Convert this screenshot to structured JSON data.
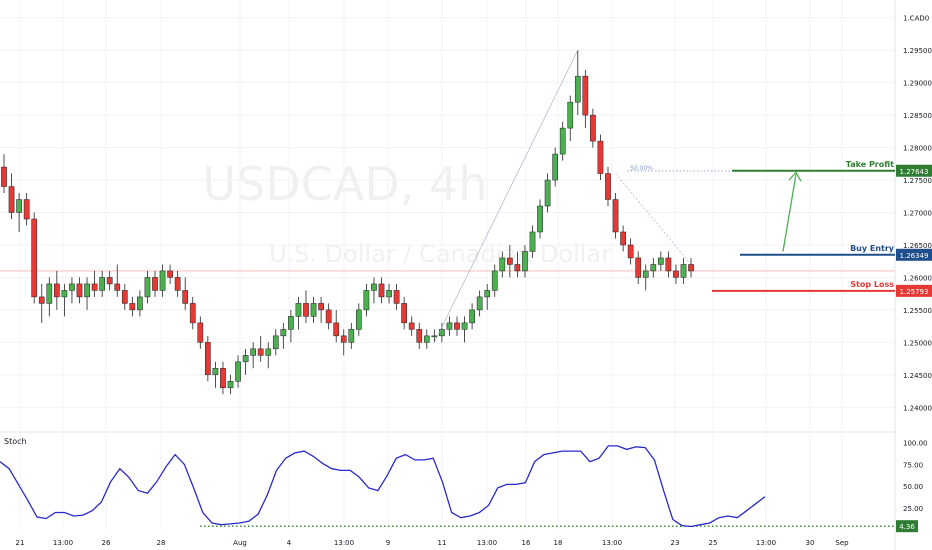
{
  "chart_data": {
    "type": "candlestick",
    "symbol": "USDCAD",
    "interval": "4h",
    "watermark_symbol": "USDCAD, 4h",
    "watermark_name": "U.S. Dollar / Canadian Dollar",
    "currency_label": "CAD",
    "price_axis": {
      "ylim": [
        1.2365,
        1.3015
      ],
      "ticks": [
        1.24,
        1.245,
        1.25,
        1.255,
        1.26,
        1.265,
        1.27,
        1.275,
        1.28,
        1.285,
        1.29,
        1.295,
        1.3
      ]
    },
    "time_axis_labels": [
      "21",
      "13:00",
      "26",
      "28",
      "Aug",
      "4",
      "13:00",
      "9",
      "11",
      "13:00",
      "16",
      "18",
      "13:00",
      "23",
      "25",
      "13:00",
      "30",
      "Sep"
    ],
    "candles": [
      [
        1.277,
        1.279,
        1.273,
        1.274
      ],
      [
        1.274,
        1.276,
        1.269,
        1.27
      ],
      [
        1.27,
        1.273,
        1.267,
        1.272
      ],
      [
        1.272,
        1.273,
        1.268,
        1.269
      ],
      [
        1.269,
        1.27,
        1.256,
        1.257
      ],
      [
        1.257,
        1.259,
        1.253,
        1.256
      ],
      [
        1.256,
        1.26,
        1.254,
        1.259
      ],
      [
        1.259,
        1.261,
        1.255,
        1.257
      ],
      [
        1.257,
        1.259,
        1.254,
        1.258
      ],
      [
        1.258,
        1.26,
        1.256,
        1.259
      ],
      [
        1.259,
        1.26,
        1.256,
        1.257
      ],
      [
        1.257,
        1.26,
        1.255,
        1.259
      ],
      [
        1.259,
        1.261,
        1.257,
        1.258
      ],
      [
        1.258,
        1.261,
        1.257,
        1.26
      ],
      [
        1.26,
        1.261,
        1.258,
        1.259
      ],
      [
        1.259,
        1.262,
        1.257,
        1.258
      ],
      [
        1.258,
        1.259,
        1.255,
        1.256
      ],
      [
        1.256,
        1.257,
        1.254,
        1.255
      ],
      [
        1.255,
        1.258,
        1.254,
        1.257
      ],
      [
        1.257,
        1.261,
        1.256,
        1.26
      ],
      [
        1.26,
        1.261,
        1.257,
        1.258
      ],
      [
        1.258,
        1.262,
        1.257,
        1.261
      ],
      [
        1.261,
        1.262,
        1.259,
        1.26
      ],
      [
        1.26,
        1.261,
        1.257,
        1.258
      ],
      [
        1.258,
        1.26,
        1.255,
        1.256
      ],
      [
        1.256,
        1.257,
        1.252,
        1.253
      ],
      [
        1.253,
        1.254,
        1.249,
        1.25
      ],
      [
        1.25,
        1.251,
        1.244,
        1.245
      ],
      [
        1.245,
        1.247,
        1.243,
        1.246
      ],
      [
        1.246,
        1.247,
        1.242,
        1.243
      ],
      [
        1.243,
        1.245,
        1.242,
        1.244
      ],
      [
        1.244,
        1.248,
        1.243,
        1.247
      ],
      [
        1.247,
        1.249,
        1.245,
        1.248
      ],
      [
        1.248,
        1.25,
        1.246,
        1.249
      ],
      [
        1.249,
        1.251,
        1.247,
        1.248
      ],
      [
        1.248,
        1.25,
        1.246,
        1.249
      ],
      [
        1.249,
        1.252,
        1.248,
        1.251
      ],
      [
        1.251,
        1.253,
        1.249,
        1.252
      ],
      [
        1.252,
        1.255,
        1.25,
        1.254
      ],
      [
        1.254,
        1.257,
        1.252,
        1.256
      ],
      [
        1.256,
        1.258,
        1.253,
        1.254
      ],
      [
        1.254,
        1.257,
        1.253,
        1.256
      ],
      [
        1.256,
        1.257,
        1.253,
        1.255
      ],
      [
        1.255,
        1.256,
        1.252,
        1.253
      ],
      [
        1.253,
        1.255,
        1.25,
        1.251
      ],
      [
        1.251,
        1.252,
        1.248,
        1.25
      ],
      [
        1.25,
        1.253,
        1.249,
        1.252
      ],
      [
        1.252,
        1.256,
        1.251,
        1.255
      ],
      [
        1.255,
        1.259,
        1.254,
        1.258
      ],
      [
        1.258,
        1.26,
        1.256,
        1.259
      ],
      [
        1.259,
        1.26,
        1.256,
        1.257
      ],
      [
        1.257,
        1.259,
        1.256,
        1.258
      ],
      [
        1.258,
        1.259,
        1.255,
        1.256
      ],
      [
        1.256,
        1.257,
        1.252,
        1.253
      ],
      [
        1.253,
        1.254,
        1.251,
        1.252
      ],
      [
        1.252,
        1.253,
        1.249,
        1.25
      ],
      [
        1.25,
        1.252,
        1.249,
        1.251
      ],
      [
        1.251,
        1.252,
        1.25,
        1.251
      ],
      [
        1.251,
        1.253,
        1.25,
        1.252
      ],
      [
        1.252,
        1.254,
        1.251,
        1.253
      ],
      [
        1.253,
        1.254,
        1.251,
        1.252
      ],
      [
        1.252,
        1.254,
        1.25,
        1.253
      ],
      [
        1.253,
        1.256,
        1.252,
        1.255
      ],
      [
        1.255,
        1.258,
        1.254,
        1.257
      ],
      [
        1.257,
        1.259,
        1.255,
        1.258
      ],
      [
        1.258,
        1.262,
        1.257,
        1.261
      ],
      [
        1.261,
        1.264,
        1.26,
        1.263
      ],
      [
        1.263,
        1.265,
        1.26,
        1.262
      ],
      [
        1.262,
        1.264,
        1.26,
        1.261
      ],
      [
        1.261,
        1.265,
        1.26,
        1.264
      ],
      [
        1.264,
        1.268,
        1.263,
        1.267
      ],
      [
        1.267,
        1.272,
        1.266,
        1.271
      ],
      [
        1.271,
        1.276,
        1.27,
        1.275
      ],
      [
        1.275,
        1.28,
        1.274,
        1.279
      ],
      [
        1.279,
        1.284,
        1.278,
        1.283
      ],
      [
        1.283,
        1.288,
        1.281,
        1.287
      ],
      [
        1.287,
        1.295,
        1.285,
        1.291
      ],
      [
        1.291,
        1.292,
        1.283,
        1.285
      ],
      [
        1.285,
        1.286,
        1.28,
        1.281
      ],
      [
        1.281,
        1.282,
        1.275,
        1.276
      ],
      [
        1.276,
        1.277,
        1.271,
        1.272
      ],
      [
        1.272,
        1.273,
        1.266,
        1.267
      ],
      [
        1.267,
        1.268,
        1.264,
        1.265
      ],
      [
        1.265,
        1.266,
        1.262,
        1.263
      ],
      [
        1.263,
        1.264,
        1.259,
        1.26
      ],
      [
        1.26,
        1.262,
        1.258,
        1.261
      ],
      [
        1.261,
        1.263,
        1.26,
        1.262
      ],
      [
        1.262,
        1.264,
        1.261,
        1.263
      ],
      [
        1.263,
        1.264,
        1.26,
        1.261
      ],
      [
        1.261,
        1.262,
        1.259,
        1.26
      ],
      [
        1.26,
        1.263,
        1.259,
        1.262
      ],
      [
        1.262,
        1.263,
        1.26,
        1.261
      ]
    ],
    "annotations": {
      "fib_label": "50.00%",
      "fib_level": 1.2764,
      "take_profit": {
        "label": "Take Profit",
        "price": 1.27643,
        "price_text": "1.27643",
        "color": "#2e7d32"
      },
      "buy_entry": {
        "label": "Buy Entry",
        "price": 1.26349,
        "price_text": "1.26349",
        "color": "#1e4e8c"
      },
      "stop_loss": {
        "label": "Stop Loss",
        "price": 1.25793,
        "price_text": "1.25793",
        "color": "#e53935"
      },
      "arrow": {
        "from_price": 1.264,
        "to_price": 1.2762,
        "color": "#4caf50"
      }
    },
    "stoch": {
      "title": "Stoch",
      "ylim": [
        0,
        105
      ],
      "ticks": [
        "100.00",
        "75.00",
        "50.00",
        "25.00"
      ],
      "tick_values": [
        100,
        75,
        50,
        25
      ],
      "level": 4.36,
      "level_text": "4.36",
      "level_color": "#2e7d32",
      "line_color": "#2929cc",
      "values": [
        78,
        70,
        52,
        34,
        15,
        13,
        20,
        20,
        16,
        17,
        22,
        32,
        55,
        70,
        60,
        45,
        42,
        55,
        72,
        86,
        75,
        48,
        20,
        8,
        6,
        7,
        8,
        10,
        18,
        40,
        68,
        82,
        88,
        90,
        84,
        76,
        70,
        68,
        68,
        60,
        48,
        45,
        62,
        82,
        86,
        80,
        80,
        82,
        55,
        20,
        14,
        16,
        20,
        28,
        48,
        52,
        52,
        54,
        78,
        86,
        88,
        90,
        90,
        90,
        78,
        82,
        96,
        96,
        92,
        95,
        94,
        80,
        45,
        12,
        5,
        4,
        6,
        8,
        14,
        16,
        14,
        22,
        30,
        38
      ]
    },
    "colors": {
      "up": "#26a69a",
      "down": "#ef5350",
      "up_body": "#4caf50",
      "down_body": "#e53935",
      "grid": "#f0f3fa",
      "axis_text": "#131722"
    }
  }
}
